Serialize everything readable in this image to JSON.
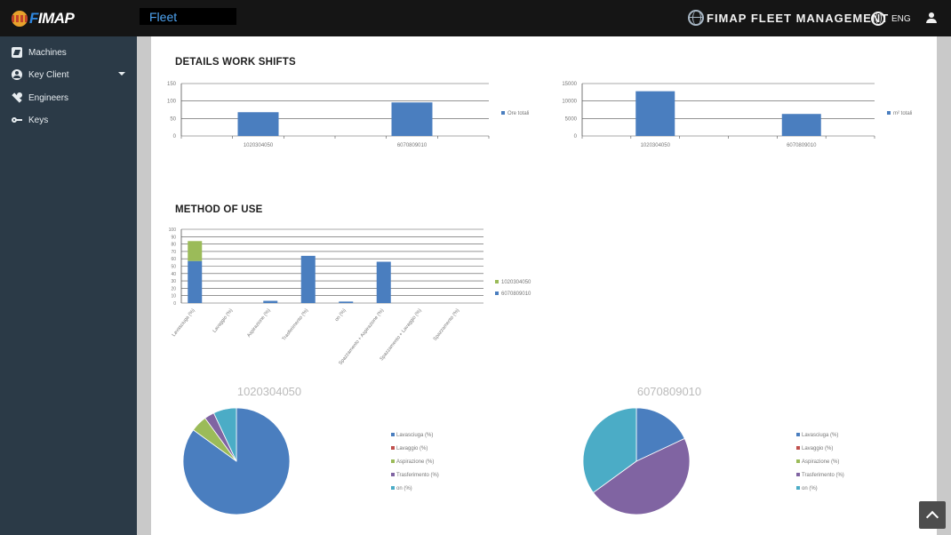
{
  "header": {
    "logo_text_a": "F",
    "logo_text_b": "IMAP",
    "page_tab": "Fleet",
    "brand": "FIMAP FLEET MANAGEMENT",
    "language": "ENG"
  },
  "sidebar": {
    "items": [
      {
        "label": "Machines",
        "icon": "machines-icon"
      },
      {
        "label": "Key Client",
        "icon": "account-circle-icon"
      },
      {
        "label": "Engineers",
        "icon": "wrench-icon"
      },
      {
        "label": "Keys",
        "icon": "key-icon"
      }
    ]
  },
  "sections": {
    "work_shifts_title": "DETAILS WORK SHIFTS",
    "method_title": "METHOD OF USE"
  },
  "colors": {
    "blue": "#4a7ebf",
    "green": "#9bbb59",
    "purple": "#8064a2",
    "teal": "#4bacc6",
    "red": "#c0504d"
  },
  "chart_data": [
    {
      "type": "bar",
      "categories": [
        "1020304050",
        "6070809010"
      ],
      "values": [
        68,
        96
      ],
      "ylim": [
        0,
        150
      ],
      "yticks": [
        0,
        50,
        100,
        150
      ],
      "legend": "Ore totali",
      "legend_position": "right"
    },
    {
      "type": "bar",
      "categories": [
        "1020304050",
        "6070809010"
      ],
      "values": [
        12800,
        6300
      ],
      "ylim": [
        0,
        15000
      ],
      "yticks": [
        0,
        5000,
        10000,
        15000
      ],
      "legend": "m² totali",
      "legend_position": "right"
    },
    {
      "type": "bar",
      "stacked": true,
      "categories": [
        "Lavasciuga (%)",
        "Lavaggio (%)",
        "Aspirazione (%)",
        "Trasferimento (%)",
        "on (%)",
        "Spazzamento + Aspirazione (%)",
        "Spazzamento + Lavaggio (%)",
        "Spazzamento (%)"
      ],
      "series": [
        {
          "name": "1020304050",
          "values": [
            27,
            0,
            0,
            0,
            0,
            0,
            0,
            0
          ]
        },
        {
          "name": "6070809010",
          "values": [
            57,
            0,
            3,
            64,
            2,
            56,
            0,
            0
          ]
        }
      ],
      "ylim": [
        0,
        100
      ],
      "yticks": [
        0,
        10,
        20,
        30,
        40,
        50,
        60,
        70,
        80,
        90,
        100
      ],
      "legend_position": "right"
    },
    {
      "type": "pie",
      "title": "1020304050",
      "labels": [
        "Lavasciuga (%)",
        "Lavaggio (%)",
        "Aspirazione (%)",
        "Trasferimento (%)",
        "on (%)"
      ],
      "values": [
        85,
        0,
        5,
        3,
        7
      ],
      "legend_position": "right"
    },
    {
      "type": "pie",
      "title": "6070809010",
      "labels": [
        "Lavasciuga (%)",
        "Lavaggio (%)",
        "Aspirazione (%)",
        "Trasferimento (%)",
        "on (%)"
      ],
      "values": [
        18,
        0,
        0,
        47,
        35
      ],
      "legend_position": "right"
    }
  ]
}
